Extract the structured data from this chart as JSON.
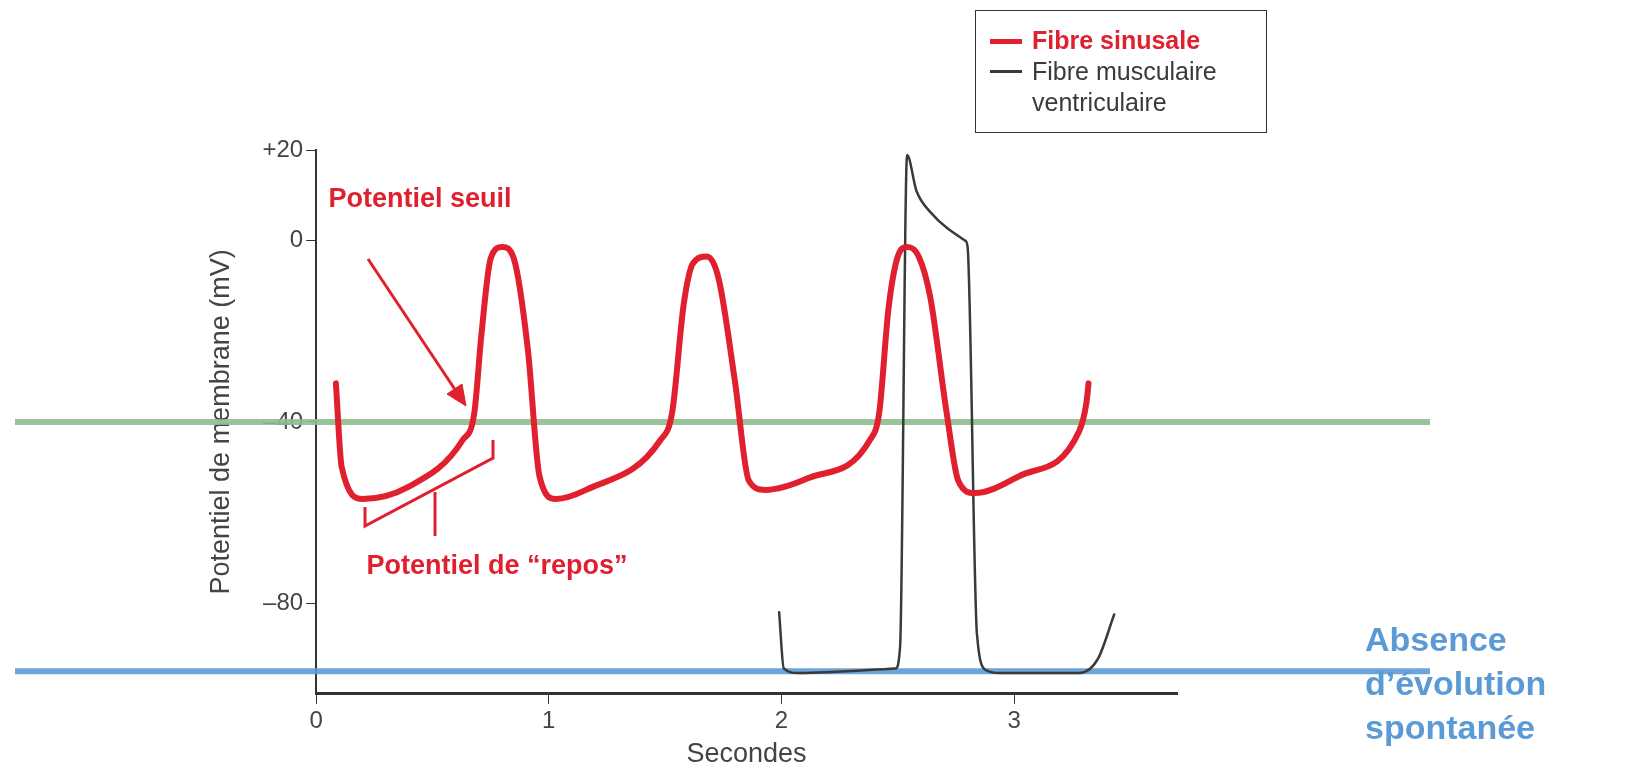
{
  "chart_data": {
    "type": "line",
    "xlabel": "Secondes",
    "ylabel": "Potentiel de membrane (mV)",
    "xlim": [
      0,
      3.7
    ],
    "xticks": [
      0,
      1,
      2,
      3
    ],
    "ylim": [
      -100,
      20
    ],
    "yticks": [
      {
        "value": 20,
        "label": "+20"
      },
      0,
      {
        "value": -40,
        "label": "–40"
      },
      {
        "value": -80,
        "label": "–80"
      }
    ],
    "grid": false,
    "legend": "top right",
    "marker": "none",
    "line_style": "solid",
    "series": [
      {
        "name": "Fibre sinusale",
        "color": "#e0202e",
        "x": [
          0.085,
          0.11,
          0.2,
          0.39,
          0.63,
          0.68,
          0.71,
          0.75,
          0.8,
          0.85,
          0.91,
          0.96,
          1.03,
          1.16,
          1.48,
          1.53,
          1.58,
          1.62,
          1.68,
          1.73,
          1.8,
          1.86,
          1.93,
          2.11,
          2.38,
          2.42,
          2.46,
          2.5,
          2.54,
          2.59,
          2.64,
          2.71,
          2.76,
          2.83,
          3.02,
          3.28,
          3.31,
          3.32
        ],
        "values": [
          -31.5,
          -50,
          -57,
          -54.5,
          -44,
          -38,
          -21,
          -4,
          -1.4,
          -4,
          -24,
          -52,
          -57,
          -55,
          -44,
          -38,
          -14,
          -5,
          -3.5,
          -8.4,
          -31,
          -53,
          -55,
          -52.5,
          -44,
          -38,
          -15,
          -3.5,
          -1.4,
          -3.5,
          -12.6,
          -38,
          -53,
          -55.7,
          -52,
          -42,
          -36,
          -31.5
        ]
      },
      {
        "name": "Fibre musculaire ventriculaire",
        "color": "#3a3a3a",
        "x": [
          1.99,
          2.01,
          2.07,
          2.49,
          2.51,
          2.54,
          2.58,
          2.64,
          2.79,
          2.8,
          2.84,
          2.88,
          2.94,
          3.28,
          3.36,
          3.43
        ],
        "values": [
          -82,
          -94.4,
          -95.4,
          -94.4,
          -89.5,
          18.9,
          11,
          6.3,
          0,
          -1.4,
          -86.7,
          -94.8,
          -95.4,
          -95.4,
          -92.3,
          -82.5
        ]
      }
    ],
    "ref_lines": [
      {
        "axis": "y",
        "value": -40,
        "color": "#8fbc8f"
      },
      {
        "axis": "y",
        "value": -95,
        "label": "Absence d’évolution spontanée",
        "color": "#5b9bd5"
      }
    ],
    "annotations": [
      "Potentiel seuil",
      "Potentiel de “repos”"
    ]
  }
}
